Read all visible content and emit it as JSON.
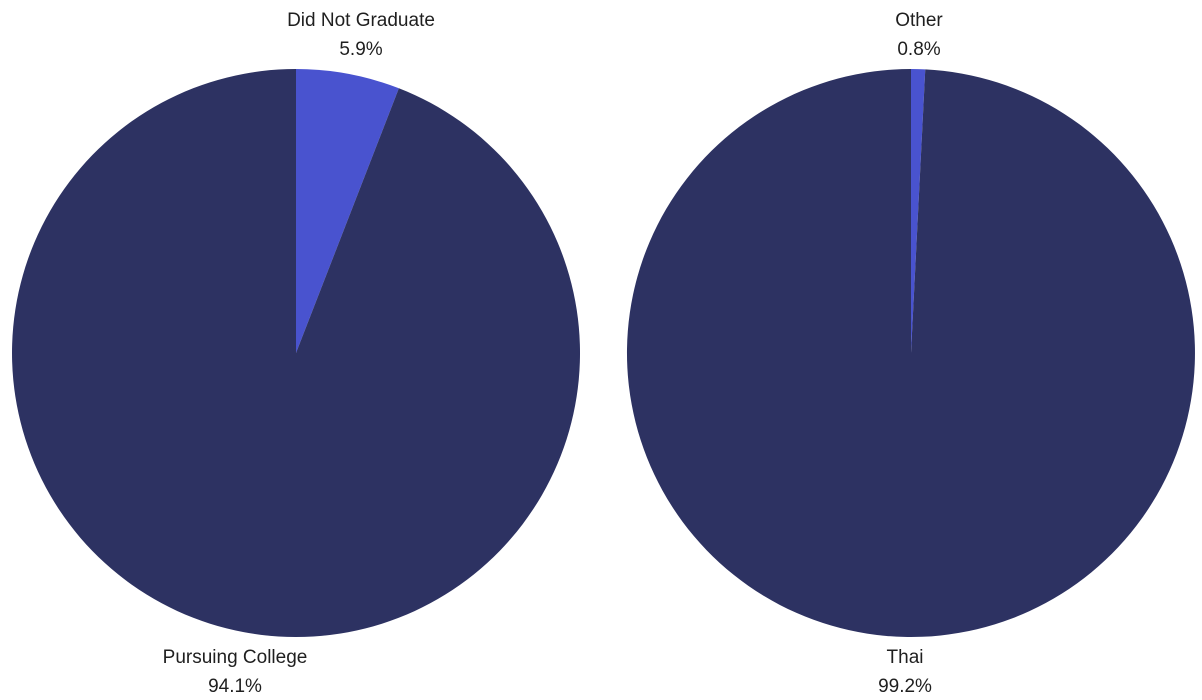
{
  "chart_data": [
    {
      "type": "pie",
      "title": "",
      "categories": [
        "Did Not Graduate",
        "Pursuing College"
      ],
      "values": [
        5.9,
        94.1
      ],
      "value_labels": [
        "5.9%",
        "94.1%"
      ],
      "colors": [
        "#4953cf",
        "#2d3262"
      ],
      "start": "top",
      "direction": "clockwise",
      "legend": "none",
      "label_placement": "outside"
    },
    {
      "type": "pie",
      "title": "",
      "categories": [
        "Other",
        "Thai"
      ],
      "values": [
        0.8,
        99.2
      ],
      "value_labels": [
        "0.8%",
        "99.2%"
      ],
      "colors": [
        "#4953cf",
        "#2d3262"
      ],
      "start": "top",
      "direction": "clockwise",
      "legend": "none",
      "label_placement": "outside"
    }
  ]
}
